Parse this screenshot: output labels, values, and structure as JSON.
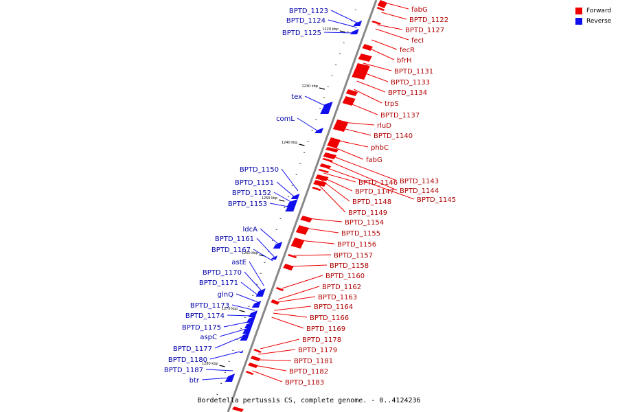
{
  "colors": {
    "forward": "#ee0000",
    "reverse": "#1010ee",
    "axis": "#888888"
  },
  "legend": [
    {
      "label": "Forward",
      "color": "#ee0000"
    },
    {
      "label": "Reverse",
      "color": "#1010ee"
    }
  ],
  "caption": "Bordetella pertussis CS, complete genome. - 0..4124236",
  "axis_ticks": [
    "1220 kbp",
    "1230 kbp",
    "1240 kbp",
    "1250 kbp",
    "1260 kbp",
    "1270 kbp",
    "1280 kbp"
  ],
  "forward_genes": [
    "fabG",
    "BPTD_1122",
    "BPTD_1127",
    "fecI",
    "fecR",
    "bfrH",
    "BPTD_1131",
    "BPTD_1133",
    "BPTD_1134",
    "trpS",
    "BPTD_1137",
    "rluD",
    "BPTD_1140",
    "phbC",
    "fabG",
    "BPTD_1143",
    "BPTD_1144",
    "BPTD_1145",
    "BPTD_1146",
    "BPTD_1147",
    "BPTD_1148",
    "BPTD_1149",
    "BPTD_1154",
    "BPTD_1155",
    "BPTD_1156",
    "BPTD_1157",
    "BPTD_1158",
    "BPTD_1160",
    "BPTD_1162",
    "BPTD_1163",
    "BPTD_1164",
    "BPTD_1166",
    "BPTD_1169",
    "BPTD_1178",
    "BPTD_1179",
    "BPTD_1181",
    "BPTD_1182",
    "BPTD_1183"
  ],
  "reverse_genes": [
    "BPTD_1123",
    "BPTD_1124",
    "BPTD_1125",
    "tex",
    "comL",
    "BPTD_1150",
    "BPTD_1151",
    "BPTD_1152",
    "BPTD_1153",
    "ldcA",
    "BPTD_1161",
    "BPTD_1167",
    "astE",
    "BPTD_1170",
    "BPTD_1171",
    "glnQ",
    "BPTD_1173",
    "BPTD_1174",
    "BPTD_1175",
    "aspC",
    "BPTD_1177",
    "BPTD_1180",
    "BPTD_1187",
    "btr"
  ]
}
